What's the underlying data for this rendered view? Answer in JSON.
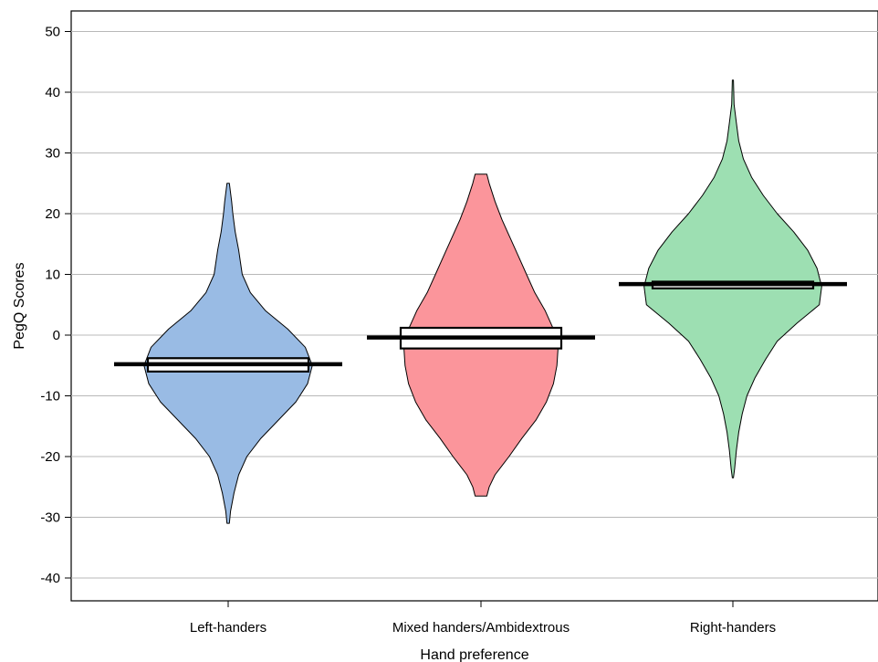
{
  "chart_data": {
    "type": "violin",
    "title": "",
    "xlabel": "Hand preference",
    "ylabel": "PegQ Scores",
    "ylim": [
      -44,
      54
    ],
    "yticks": [
      50,
      40,
      30,
      20,
      10,
      0,
      -10,
      -20,
      -30,
      -40
    ],
    "ytick_labels": [
      "50",
      "40",
      "30",
      "20",
      "10",
      "0",
      "-10",
      "-20",
      "-30",
      "-40"
    ],
    "grid": "horizontal",
    "categories": [
      "Left-handers",
      "Mixed handers/Ambidextrous",
      "Right-handers"
    ],
    "series": [
      {
        "category": "Left-handers",
        "color": "#99bbe4",
        "mean": -4.8,
        "ci": [
          -6.0,
          -3.8
        ],
        "range": [
          -31,
          25
        ],
        "density_profile": [
          [
            25,
            0.01
          ],
          [
            22,
            0.03
          ],
          [
            20,
            0.04
          ],
          [
            17,
            0.06
          ],
          [
            14,
            0.09
          ],
          [
            10,
            0.12
          ],
          [
            7,
            0.19
          ],
          [
            4,
            0.32
          ],
          [
            1,
            0.51
          ],
          [
            -2,
            0.66
          ],
          [
            -5,
            0.72
          ],
          [
            -8,
            0.68
          ],
          [
            -11,
            0.58
          ],
          [
            -14,
            0.43
          ],
          [
            -17,
            0.28
          ],
          [
            -20,
            0.16
          ],
          [
            -23,
            0.09
          ],
          [
            -26,
            0.05
          ],
          [
            -29,
            0.02
          ],
          [
            -31,
            0.01
          ]
        ]
      },
      {
        "category": "Mixed handers/Ambidextrous",
        "color": "#fb959b",
        "mean": -0.4,
        "ci": [
          -2.2,
          1.2
        ],
        "range": [
          -26.5,
          26.5
        ],
        "density_profile": [
          [
            26.5,
            0.05
          ],
          [
            25,
            0.07
          ],
          [
            22,
            0.12
          ],
          [
            19,
            0.18
          ],
          [
            16,
            0.25
          ],
          [
            13,
            0.32
          ],
          [
            10,
            0.39
          ],
          [
            7,
            0.46
          ],
          [
            4,
            0.55
          ],
          [
            1,
            0.62
          ],
          [
            -2,
            0.66
          ],
          [
            -5,
            0.65
          ],
          [
            -8,
            0.62
          ],
          [
            -11,
            0.56
          ],
          [
            -14,
            0.47
          ],
          [
            -17,
            0.35
          ],
          [
            -20,
            0.24
          ],
          [
            -23,
            0.12
          ],
          [
            -25,
            0.07
          ],
          [
            -26.5,
            0.05
          ]
        ]
      },
      {
        "category": "Right-handers",
        "color": "#9ddfb2",
        "mean": 8.4,
        "ci": [
          7.7,
          8.8
        ],
        "range": [
          -23.5,
          42
        ],
        "density_profile": [
          [
            42,
            0.005
          ],
          [
            38,
            0.01
          ],
          [
            35,
            0.03
          ],
          [
            32,
            0.05
          ],
          [
            29,
            0.09
          ],
          [
            26,
            0.16
          ],
          [
            23,
            0.26
          ],
          [
            20,
            0.38
          ],
          [
            17,
            0.52
          ],
          [
            14,
            0.64
          ],
          [
            11,
            0.72
          ],
          [
            8,
            0.76
          ],
          [
            5,
            0.74
          ],
          [
            2,
            0.55
          ],
          [
            -1,
            0.38
          ],
          [
            -4,
            0.28
          ],
          [
            -7,
            0.19
          ],
          [
            -10,
            0.12
          ],
          [
            -13,
            0.08
          ],
          [
            -16,
            0.05
          ],
          [
            -19,
            0.03
          ],
          [
            -22,
            0.015
          ],
          [
            -23.5,
            0.005
          ]
        ]
      }
    ]
  }
}
